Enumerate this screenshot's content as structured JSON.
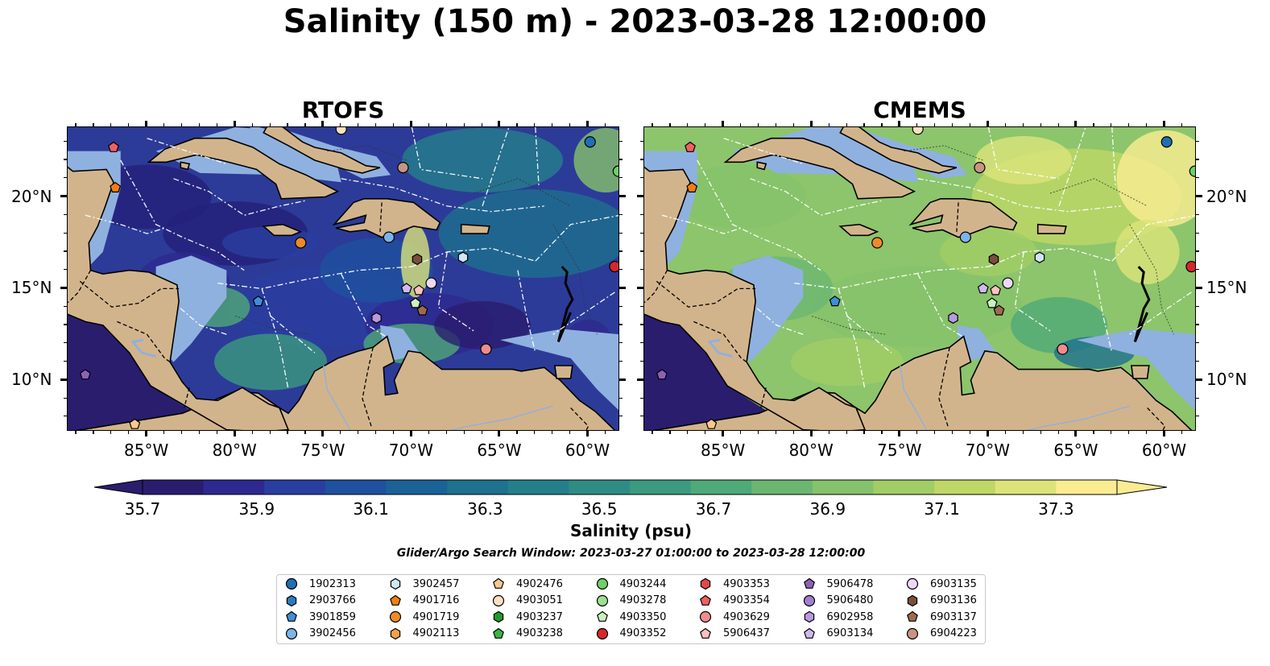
{
  "title": "Salinity (150 m) - 2023-03-28 12:00:00",
  "panels": [
    {
      "title": "RTOFS",
      "style": "low"
    },
    {
      "title": "CMEMS",
      "style": "high"
    }
  ],
  "axes": {
    "lon_ticks": [
      "85°W",
      "80°W",
      "75°W",
      "70°W",
      "65°W",
      "60°W"
    ],
    "lat_ticks": [
      "20°N",
      "15°N",
      "10°N"
    ],
    "lon_range": [
      -89.5,
      -58.2
    ],
    "lat_range": [
      7.2,
      23.8
    ]
  },
  "colorbar": {
    "label": "Salinity (psu)",
    "ticks": [
      "35.7",
      "35.9",
      "36.1",
      "36.3",
      "36.5",
      "36.7",
      "36.9",
      "37.1",
      "37.3"
    ],
    "min": 35.7,
    "max": 37.3,
    "colors": [
      "#2a1d6e",
      "#2e2990",
      "#2a3ea0",
      "#1f519f",
      "#1b6297",
      "#1e718f",
      "#257f8b",
      "#2f8c85",
      "#3b9a80",
      "#4fa978",
      "#6cb672",
      "#86c26c",
      "#a1cd66",
      "#bfd766",
      "#dce37a",
      "#fbec92"
    ],
    "extend": "both"
  },
  "search_window": "Glider/Argo Search Window: 2023-03-27 01:00:00 to 2023-03-28 12:00:00",
  "floats": [
    {
      "id": "1902313",
      "color": "#1f6fb4",
      "marker": "circle",
      "lon": -59.9,
      "lat": 23.0
    },
    {
      "id": "2903766",
      "color": "#2a7bc1",
      "marker": "hexagon",
      "lon": null,
      "lat": null
    },
    {
      "id": "3901859",
      "color": "#3d8fd9",
      "marker": "pentagon",
      "lon": -78.7,
      "lat": 14.3
    },
    {
      "id": "3902456",
      "color": "#7db4e8",
      "marker": "circle",
      "lon": -71.3,
      "lat": 17.8
    },
    {
      "id": "3902457",
      "color": "#cfe6f7",
      "marker": "hexagon",
      "lon": -67.1,
      "lat": 16.7
    },
    {
      "id": "4901716",
      "color": "#f07f10",
      "marker": "pentagon",
      "lon": -86.8,
      "lat": 20.5
    },
    {
      "id": "4901719",
      "color": "#f08a28",
      "marker": "circle",
      "lon": -76.3,
      "lat": 17.5
    },
    {
      "id": "4902113",
      "color": "#f5a04a",
      "marker": "hexagon",
      "lon": null,
      "lat": null
    },
    {
      "id": "4902476",
      "color": "#f9c890",
      "marker": "pentagon",
      "lon": -85.7,
      "lat": 7.6
    },
    {
      "id": "4903051",
      "color": "#fde0c0",
      "marker": "circle",
      "lon": -74.0,
      "lat": 23.7
    },
    {
      "id": "4903237",
      "color": "#1f9b2a",
      "marker": "hexagon",
      "lon": null,
      "lat": null
    },
    {
      "id": "4903238",
      "color": "#3bb544",
      "marker": "pentagon",
      "lon": null,
      "lat": null
    },
    {
      "id": "4903244",
      "color": "#6fcf6a",
      "marker": "circle",
      "lon": -58.3,
      "lat": 21.4
    },
    {
      "id": "4903278",
      "color": "#9be090",
      "marker": "circle",
      "lon": null,
      "lat": null
    },
    {
      "id": "4903350",
      "color": "#c8f2c0",
      "marker": "pentagon",
      "lon": -69.8,
      "lat": 14.2
    },
    {
      "id": "4903352",
      "color": "#d62728",
      "marker": "circle",
      "lon": -58.5,
      "lat": 16.2
    },
    {
      "id": "4903353",
      "color": "#e04848",
      "marker": "hexagon",
      "lon": null,
      "lat": null
    },
    {
      "id": "4903354",
      "color": "#f06060",
      "marker": "pentagon",
      "lon": -86.9,
      "lat": 22.7
    },
    {
      "id": "4903629",
      "color": "#f08c8c",
      "marker": "circle",
      "lon": -65.8,
      "lat": 11.7
    },
    {
      "id": "5906437",
      "color": "#fcc0c0",
      "marker": "pentagon",
      "lon": -69.6,
      "lat": 14.9
    },
    {
      "id": "5906478",
      "color": "#8c62b8",
      "marker": "pentagon",
      "lon": -88.5,
      "lat": 10.3
    },
    {
      "id": "5906480",
      "color": "#a07ed0",
      "marker": "circle",
      "lon": null,
      "lat": null
    },
    {
      "id": "6902958",
      "color": "#b89ae0",
      "marker": "hexagon",
      "lon": -72.0,
      "lat": 13.4
    },
    {
      "id": "6903134",
      "color": "#d0b8f0",
      "marker": "pentagon",
      "lon": -70.3,
      "lat": 15.0
    },
    {
      "id": "6903135",
      "color": "#ecd8f8",
      "marker": "circle",
      "lon": -68.9,
      "lat": 15.3
    },
    {
      "id": "6903136",
      "color": "#7a4d3c",
      "marker": "hexagon",
      "lon": -69.7,
      "lat": 16.6
    },
    {
      "id": "6903137",
      "color": "#a06a50",
      "marker": "pentagon",
      "lon": -69.4,
      "lat": 13.8
    },
    {
      "id": "6904223",
      "color": "#c89484",
      "marker": "circle",
      "lon": -70.5,
      "lat": 21.6
    }
  ]
}
